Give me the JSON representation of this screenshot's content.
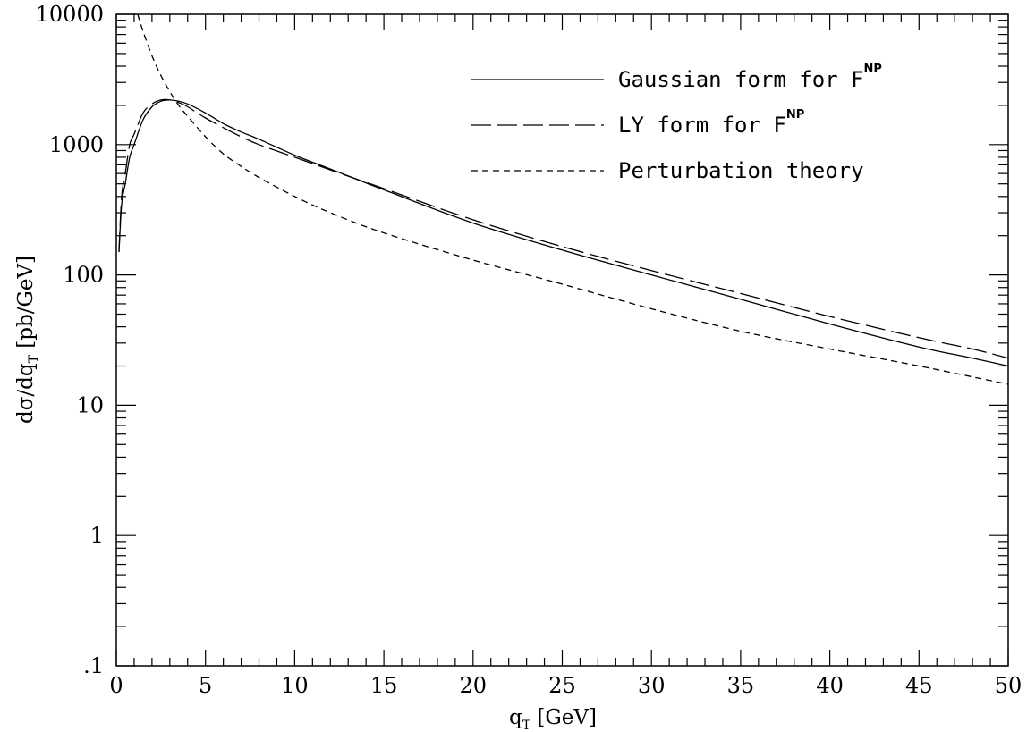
{
  "chart_data": {
    "type": "line",
    "xlabel_main": "q",
    "xlabel_sub": "T",
    "xlabel_unit": " [GeV]",
    "ylabel_main": "dσ/dq",
    "ylabel_sub": "T",
    "ylabel_unit": " [pb/GeV]",
    "xlim": [
      0,
      50
    ],
    "ylim": [
      0.1,
      10000
    ],
    "yscale": "log",
    "grid": false,
    "legend_position": "top-right",
    "x_ticks": [
      0,
      5,
      10,
      15,
      20,
      25,
      30,
      35,
      40,
      45,
      50
    ],
    "x_tick_labels": [
      "0",
      "5",
      "10",
      "15",
      "20",
      "25",
      "30",
      "35",
      "40",
      "45",
      "50"
    ],
    "y_ticks": [
      0.1,
      1,
      10,
      100,
      1000,
      10000
    ],
    "y_tick_labels": [
      ".1",
      "1",
      "10",
      "100",
      "1000",
      "10000"
    ],
    "series": [
      {
        "name_main": "Gaussian form for F",
        "name_sup": "NP",
        "dash": "solid",
        "x": [
          0.15,
          0.3,
          0.5,
          0.75,
          1.0,
          1.5,
          2.0,
          2.5,
          3.0,
          3.5,
          4.0,
          5.0,
          6.0,
          7.0,
          8.0,
          10,
          12,
          15,
          20,
          25,
          30,
          35,
          40,
          45,
          48,
          50
        ],
        "y": [
          150,
          350,
          500,
          800,
          1000,
          1550,
          1950,
          2150,
          2200,
          2150,
          2050,
          1750,
          1450,
          1250,
          1100,
          830,
          650,
          450,
          250,
          155,
          100,
          65,
          42,
          28,
          23,
          20
        ]
      },
      {
        "name_main": "LY form for F",
        "name_sup": "NP",
        "dash": "long-dash",
        "x": [
          0.15,
          0.3,
          0.5,
          0.75,
          1.0,
          1.5,
          2.0,
          2.5,
          3.0,
          3.5,
          4.0,
          5.0,
          6.0,
          7.0,
          8.0,
          10,
          12,
          15,
          20,
          25,
          30,
          35,
          40,
          45,
          48,
          50
        ],
        "y": [
          150,
          400,
          600,
          1000,
          1200,
          1750,
          2050,
          2200,
          2200,
          2100,
          1950,
          1600,
          1350,
          1150,
          1000,
          800,
          640,
          460,
          265,
          165,
          108,
          72,
          48,
          33,
          27,
          23
        ]
      },
      {
        "name_main": "Perturbation theory",
        "name_sup": "",
        "dash": "short-dash",
        "x": [
          1.2,
          1.5,
          2.0,
          2.5,
          3.0,
          3.5,
          4.0,
          5.0,
          6.0,
          7.0,
          8.0,
          10,
          12,
          15,
          20,
          25,
          30,
          35,
          40,
          45,
          50
        ],
        "y": [
          10000,
          7400,
          4800,
          3400,
          2550,
          2000,
          1650,
          1150,
          850,
          680,
          560,
          400,
          300,
          210,
          130,
          85,
          55,
          37,
          27,
          20,
          14.5
        ]
      }
    ]
  }
}
